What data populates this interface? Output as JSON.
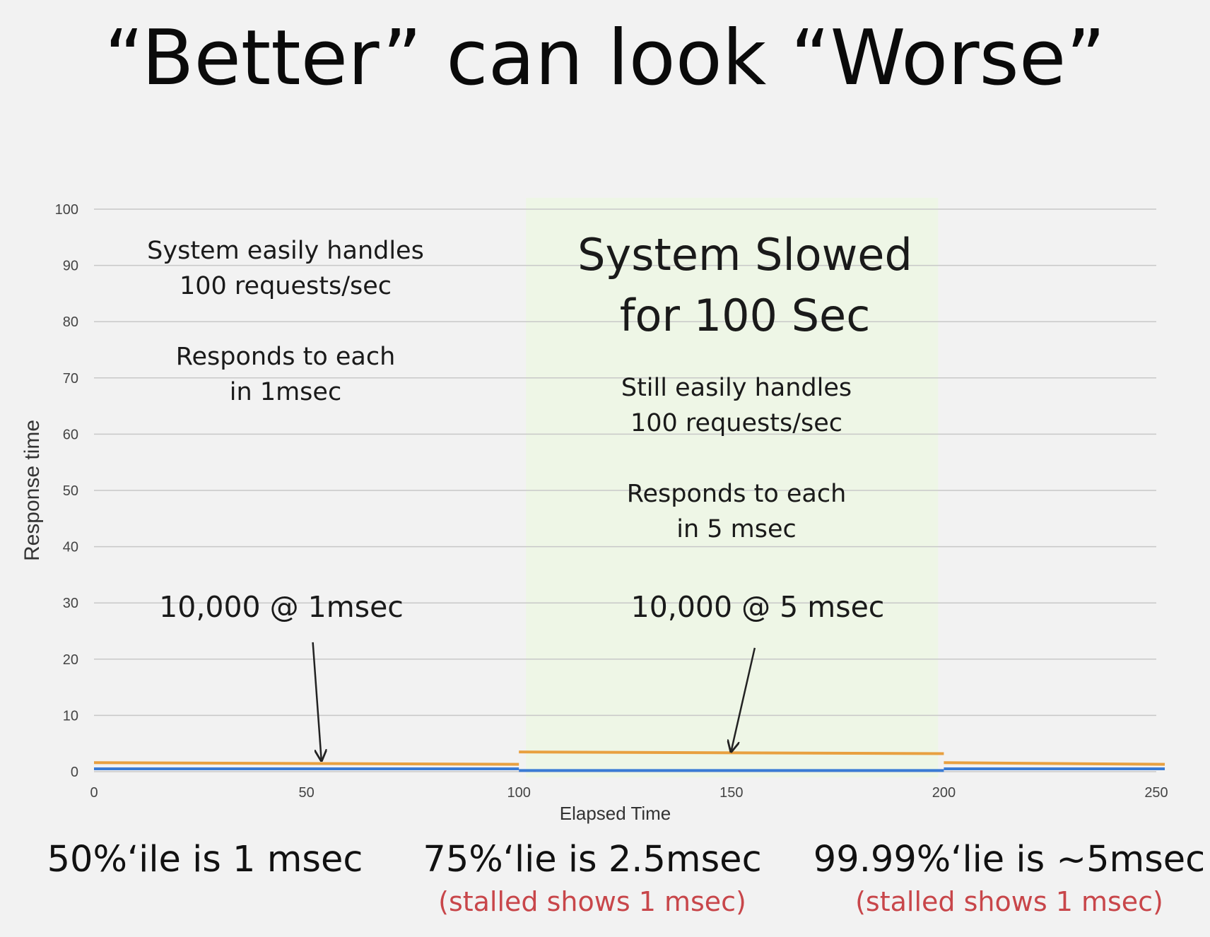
{
  "slide": {
    "title": "“Better” can look “Worse”",
    "left_note": [
      "System easily handles",
      "100 requests/sec",
      "",
      "Responds to each",
      "in 1msec"
    ],
    "middle_heading": [
      "System Slowed",
      "for 100 Sec"
    ],
    "middle_note": [
      "Still easily handles",
      "100 requests/sec",
      "",
      "Responds to each",
      "in 5 msec"
    ],
    "arrow_label_left": "10,000 @ 1msec",
    "arrow_label_middle": "10,000 @ 5 msec",
    "summaries": [
      {
        "main": "50%‘ile is 1 msec",
        "sub": ""
      },
      {
        "main": "75%‘lie is 2.5msec",
        "sub": "(stalled shows 1 msec)"
      },
      {
        "main": "99.99%‘lie is ~5msec",
        "sub": "(stalled shows 1 msec)"
      }
    ]
  },
  "colors": {
    "background": "#f2f2f2",
    "highlight_band": "#eef6e6",
    "blue_series": "#3a7bd5",
    "orange_series": "#e8a040",
    "grid": "#c8c8c8",
    "red_text": "#c8464a"
  },
  "chart_data": {
    "type": "line",
    "xlabel": "Elapsed Time",
    "ylabel": "Response time",
    "xlim": [
      0,
      250
    ],
    "ylim": [
      0,
      100
    ],
    "x_ticks": [
      0,
      50,
      100,
      150,
      200,
      250
    ],
    "y_ticks": [
      0,
      10,
      20,
      30,
      40,
      50,
      60,
      70,
      80,
      90,
      100
    ],
    "grid": true,
    "highlight_region": {
      "x_start": 100,
      "x_end": 200
    },
    "series": [
      {
        "color": "#3a7bd5",
        "segments": [
          {
            "x": [
              0,
              100
            ],
            "y": [
              0.5,
              0.5
            ]
          },
          {
            "x": [
              100,
              200
            ],
            "y": [
              0.2,
              0.2
            ]
          },
          {
            "x": [
              200,
              252
            ],
            "y": [
              0.5,
              0.5
            ]
          }
        ]
      },
      {
        "color": "#e8a040",
        "segments": [
          {
            "x": [
              0,
              100
            ],
            "y": [
              1.6,
              1.3
            ]
          },
          {
            "x": [
              100,
              200
            ],
            "y": [
              3.5,
              3.2
            ]
          },
          {
            "x": [
              200,
              252
            ],
            "y": [
              1.6,
              1.3
            ]
          }
        ]
      }
    ],
    "arrows": [
      {
        "from": [
          51.5,
          23
        ],
        "to": [
          53.5,
          2.2
        ]
      },
      {
        "from": [
          155.5,
          22
        ],
        "to": [
          150,
          3.8
        ]
      }
    ]
  }
}
